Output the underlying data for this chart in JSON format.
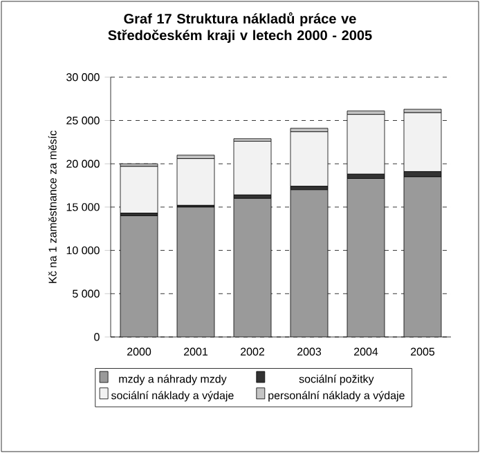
{
  "chart_data": {
    "type": "bar",
    "stacked": true,
    "title": "Graf 17 Struktura nákladů práce ve Středočeském kraji v letech 2000 - 2005",
    "ylabel": "Kč na 1 zaměstnance za měsíc",
    "categories": [
      "2000",
      "2001",
      "2002",
      "2003",
      "2004",
      "2005"
    ],
    "series": [
      {
        "name": "mzdy a náhrady mzdy",
        "color": "#9a9a9a",
        "values": [
          14000,
          15000,
          16000,
          17000,
          18300,
          18500
        ]
      },
      {
        "name": "sociální požitky",
        "color": "#333333",
        "values": [
          300,
          200,
          400,
          400,
          500,
          600
        ]
      },
      {
        "name": "sociální náklady a výdaje",
        "color": "#f2f2f2",
        "values": [
          5400,
          5400,
          6200,
          6300,
          6900,
          6800
        ]
      },
      {
        "name": "personální náklady a výdaje",
        "color": "#c4c4c4",
        "values": [
          300,
          400,
          300,
          400,
          400,
          400
        ]
      }
    ],
    "ylim": [
      0,
      30000
    ],
    "yticks": [
      {
        "value": 0,
        "label": "0"
      },
      {
        "value": 5000,
        "label": "5 000"
      },
      {
        "value": 10000,
        "label": "10 000"
      },
      {
        "value": 15000,
        "label": "15 000"
      },
      {
        "value": 20000,
        "label": "20 000"
      },
      {
        "value": 25000,
        "label": "25 000"
      },
      {
        "value": 30000,
        "label": "30 000"
      }
    ],
    "grid": "y",
    "legend": "bottom"
  }
}
